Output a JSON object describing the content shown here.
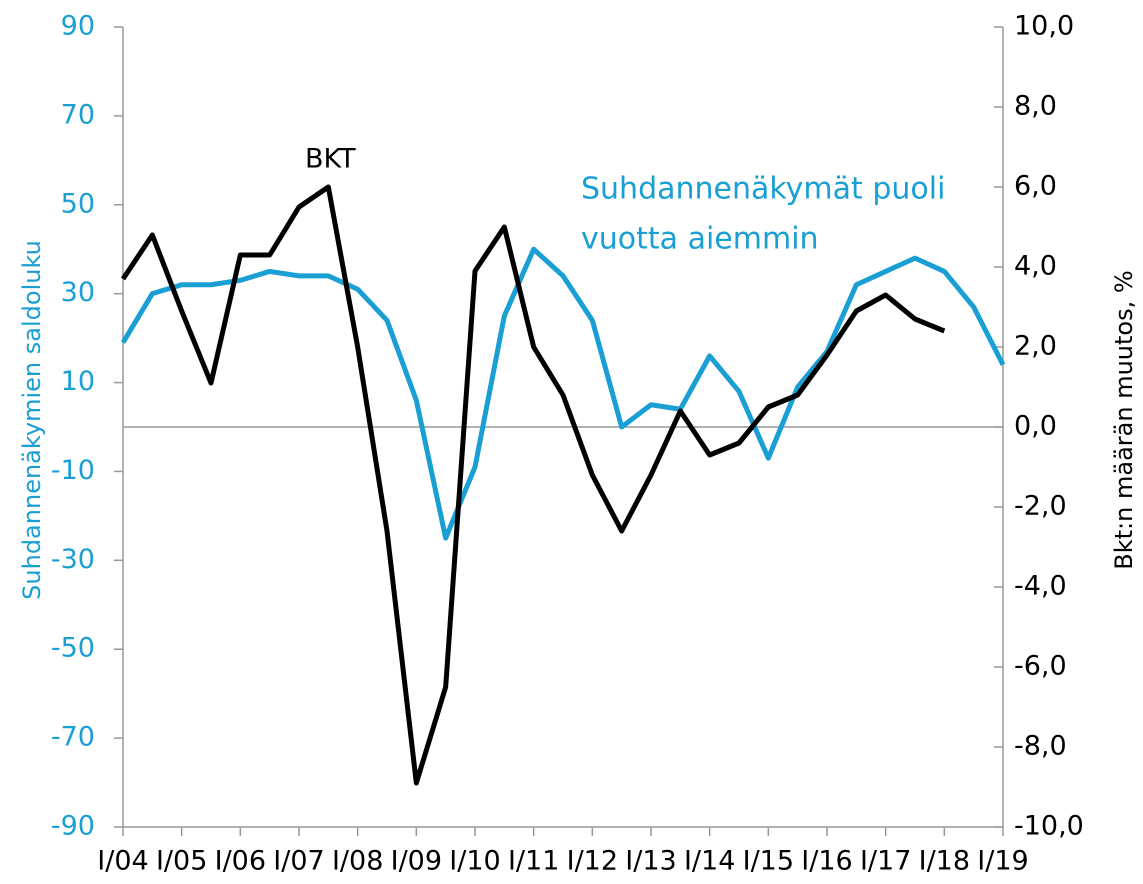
{
  "chart_data": {
    "type": "line",
    "categories": [
      "I/04",
      null,
      "I/05",
      null,
      "I/06",
      null,
      "I/07",
      null,
      "I/08",
      null,
      "I/09",
      null,
      "I/10",
      null,
      "I/11",
      null,
      "I/12",
      null,
      "I/13",
      null,
      "I/14",
      null,
      "I/15",
      null,
      "I/16",
      null,
      "I/17",
      null,
      "I/18",
      null,
      "I/19"
    ],
    "series": [
      {
        "name": [
          "Suhdannenäkymät puoli",
          "vuotta aiemmin"
        ],
        "color": "#1a9fd4",
        "axis": "y",
        "values": [
          19,
          30,
          32,
          32,
          33,
          35,
          34,
          34,
          31,
          24,
          6,
          -25,
          -9,
          25,
          40,
          34,
          24,
          0,
          5,
          4,
          16,
          8,
          -7,
          9,
          17,
          32,
          35,
          38,
          35,
          27,
          14
        ]
      },
      {
        "name": "BKT",
        "color": "#000000",
        "axis": "y2",
        "values": [
          3.7,
          4.8,
          2.9,
          1.1,
          4.3,
          4.3,
          5.5,
          6.0,
          2.0,
          -2.6,
          -8.9,
          -6.5,
          3.9,
          5.0,
          2.0,
          0.8,
          -1.2,
          -2.6,
          -1.2,
          0.4,
          -0.7,
          -0.4,
          0.5,
          0.8,
          1.8,
          2.9,
          3.3,
          2.7,
          2.4,
          null,
          null
        ]
      }
    ],
    "ylabel": "Suhdannenäkymien saldoluku",
    "y2label": "Bkt:n määrän muutos, %",
    "ylim": [
      -90,
      90
    ],
    "yticks": [
      90,
      70,
      50,
      30,
      10,
      -10,
      -30,
      -50,
      -70,
      -90
    ],
    "y2lim": [
      -10,
      10
    ],
    "y2ticks": [
      {
        "value": 10,
        "label": "10,0"
      },
      {
        "value": 8,
        "label": "8,0"
      },
      {
        "value": 6,
        "label": "6,0"
      },
      {
        "value": 4,
        "label": "4,0"
      },
      {
        "value": 2,
        "label": "2,0"
      },
      {
        "value": 0,
        "label": "0,0"
      },
      {
        "value": -2,
        "label": "-2,0"
      },
      {
        "value": -4,
        "label": "-4,0"
      },
      {
        "value": -6,
        "label": "-6,0"
      },
      {
        "value": -8,
        "label": "-8,0"
      },
      {
        "value": -10,
        "label": "-10,0"
      }
    ],
    "ycolor": "#1a9fd4",
    "y2color": "#000000",
    "zero_line": true
  }
}
